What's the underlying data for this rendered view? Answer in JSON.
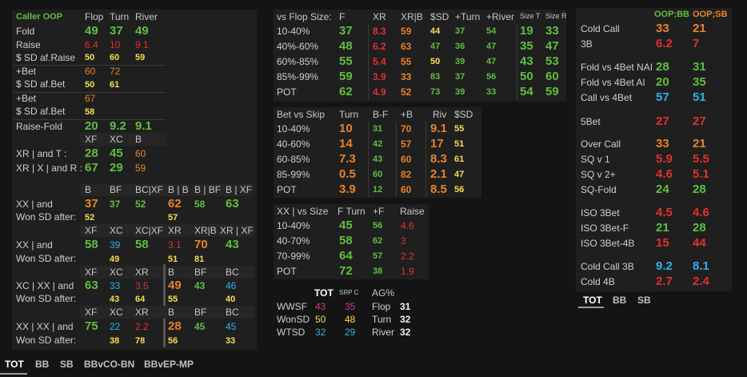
{
  "left": {
    "title": "Caller OOP",
    "cols": [
      "Flop",
      "Turn",
      "River"
    ],
    "rows1": [
      {
        "label": "Fold",
        "v": [
          "49",
          "37",
          "49"
        ]
      },
      {
        "label": "Raise",
        "v": [
          "6.4",
          "10",
          "9.1"
        ]
      },
      {
        "label": "$ SD af.Raise",
        "v": [
          "50",
          "60",
          "59"
        ]
      }
    ],
    "bet1": {
      "label": "+Bet",
      "v": [
        "60",
        "72"
      ]
    },
    "sd1": {
      "label": "$ SD af.Bet",
      "v": [
        "50",
        "61"
      ]
    },
    "bet2": {
      "label": "+Bet",
      "v": [
        "67"
      ]
    },
    "sd2": {
      "label": "$ SD af.Bet",
      "v": [
        "58"
      ]
    },
    "rf": {
      "label": "Raise-Fold",
      "v": [
        "20",
        "9.2",
        "9.1"
      ]
    },
    "xcols": [
      "XF",
      "XC",
      "B"
    ],
    "xr1": {
      "label": "XR | and T :",
      "v": [
        "28",
        "45",
        "60"
      ]
    },
    "xr2": {
      "label": "XR | X | and R :",
      "v": [
        "67",
        "29",
        "59"
      ]
    },
    "grid": {
      "h1": [
        "B",
        "BF",
        "BC|XF",
        "B | B",
        "B | BF",
        "B | XF"
      ],
      "g1": {
        "label": "XX | and",
        "won": "Won SD after:",
        "v": [
          "37",
          "37",
          "52",
          "62",
          "58",
          "63"
        ],
        "w": [
          "52",
          "",
          "",
          "57",
          "",
          ""
        ]
      },
      "h2": [
        "XF",
        "XC",
        "XC|XF",
        "XR",
        "XR|B",
        "XR | XF"
      ],
      "g2": {
        "label": "XX | and",
        "won": "Won SD after:",
        "v": [
          "58",
          "39",
          "58",
          "3.1",
          "70",
          "43"
        ],
        "w": [
          "",
          "49",
          "",
          "51",
          "81",
          ""
        ]
      },
      "h3": [
        "XF",
        "XC",
        "XR",
        "B",
        "BF",
        "BC"
      ],
      "g3": {
        "label": "XC | XX | and",
        "won": "Won SD after:",
        "v": [
          "63",
          "33",
          "3.5",
          "49",
          "43",
          "46"
        ],
        "w": [
          "",
          "43",
          "64",
          "55",
          "",
          "40"
        ]
      },
      "h4": [
        "XF",
        "XC",
        "XR",
        "B",
        "BF",
        "BC"
      ],
      "g4": {
        "label": "XX | XX | and",
        "won": "Won SD after:",
        "v": [
          "75",
          "22",
          "2.2",
          "28",
          "45",
          "45"
        ],
        "w": [
          "",
          "38",
          "78",
          "56",
          "",
          "33"
        ]
      }
    }
  },
  "mid": {
    "t1": {
      "cols": [
        "vs Flop Size:",
        "F",
        "XR",
        "XR|B",
        "$SD",
        "+Turn",
        "+River",
        "Size T",
        "Size R"
      ],
      "rows": [
        {
          "l": "10-40%",
          "v": [
            "37",
            "8.3",
            "59",
            "44",
            "37",
            "54",
            "19",
            "33"
          ]
        },
        {
          "l": "40%-60%",
          "v": [
            "48",
            "6.2",
            "63",
            "47",
            "36",
            "47",
            "35",
            "47"
          ]
        },
        {
          "l": "60%-85%",
          "v": [
            "55",
            "5.4",
            "55",
            "50",
            "39",
            "47",
            "43",
            "53"
          ]
        },
        {
          "l": "85%-99%",
          "v": [
            "59",
            "3.9",
            "33",
            "83",
            "37",
            "56",
            "50",
            "60"
          ]
        },
        {
          "l": "POT",
          "v": [
            "62",
            "4.9",
            "52",
            "73",
            "39",
            "33",
            "54",
            "59"
          ]
        }
      ]
    },
    "t2": {
      "cols": [
        "Bet vs Skip",
        "Turn",
        "B-F",
        "+B",
        "Riv",
        "$SD"
      ],
      "rows": [
        {
          "l": "10-40%",
          "v": [
            "10",
            "31",
            "70",
            "9.1",
            "55"
          ]
        },
        {
          "l": "40-60%",
          "v": [
            "14",
            "42",
            "57",
            "17",
            "51"
          ]
        },
        {
          "l": "60-85%",
          "v": [
            "7.3",
            "43",
            "60",
            "8.3",
            "61"
          ]
        },
        {
          "l": "85-99%",
          "v": [
            "0.5",
            "60",
            "82",
            "2.1",
            "47"
          ]
        },
        {
          "l": "POT",
          "v": [
            "3.9",
            "12",
            "60",
            "8.5",
            "56"
          ]
        }
      ]
    },
    "t3": {
      "cols": [
        "XX | vs Size",
        "F Turn",
        "+F",
        "Raise"
      ],
      "rows": [
        {
          "l": "10-40%",
          "v": [
            "45",
            "56",
            "4.6"
          ]
        },
        {
          "l": "40-70%",
          "v": [
            "58",
            "62",
            "3"
          ]
        },
        {
          "l": "70-99%",
          "v": [
            "64",
            "57",
            "2.2"
          ]
        },
        {
          "l": "POT",
          "v": [
            "72",
            "38",
            "1.9"
          ]
        }
      ]
    },
    "t4": {
      "cols": [
        "TOT",
        "SRP C",
        "AG%"
      ],
      "rows": [
        {
          "l": "WWSF",
          "v": [
            "43",
            "35"
          ],
          "ag": "Flop",
          "agv": "31"
        },
        {
          "l": "WonSD",
          "v": [
            "50",
            "48"
          ],
          "ag": "Turn",
          "agv": "32"
        },
        {
          "l": "WTSD",
          "v": [
            "32",
            "29"
          ],
          "ag": "River",
          "agv": "32"
        }
      ]
    }
  },
  "right": {
    "cols": [
      "OOP;BB",
      "OOP;SB"
    ],
    "rows": [
      {
        "l": "Cold Call",
        "v": [
          "33",
          "21"
        ]
      },
      {
        "l": "3B",
        "v": [
          "6.2",
          "7"
        ]
      },
      {
        "l": "Fold vs 4Bet NAI",
        "v": [
          "28",
          "31"
        ]
      },
      {
        "l": "Fold vs 4Bet AI",
        "v": [
          "20",
          "35"
        ]
      },
      {
        "l": "Call vs 4Bet",
        "v": [
          "57",
          "51"
        ]
      },
      {
        "l": "5Bet",
        "v": [
          "27",
          "27"
        ]
      },
      {
        "l": "Over Call",
        "v": [
          "33",
          "21"
        ]
      },
      {
        "l": "SQ v 1",
        "v": [
          "5.9",
          "5.5"
        ]
      },
      {
        "l": "SQ v 2+",
        "v": [
          "4.6",
          "5.1"
        ]
      },
      {
        "l": "SQ-Fold",
        "v": [
          "24",
          "28"
        ]
      },
      {
        "l": "ISO 3Bet",
        "v": [
          "4.5",
          "4.6"
        ]
      },
      {
        "l": "ISO 3Bet-F",
        "v": [
          "21",
          "28"
        ]
      },
      {
        "l": "ISO 3Bet-4B",
        "v": [
          "15",
          "44"
        ]
      },
      {
        "l": "Cold Call 3B",
        "v": [
          "9.2",
          "8.1"
        ]
      },
      {
        "l": "Cold 4B",
        "v": [
          "2.7",
          "2.4"
        ]
      }
    ],
    "tabs": [
      "TOT",
      "BB",
      "SB"
    ]
  },
  "bottom_tabs": [
    "TOT",
    "BB",
    "SB",
    "BBvCO-BN",
    "BBvEP-MP"
  ],
  "colors": {
    "green": "#5fbf3f",
    "red": "#e03030",
    "orange": "#e8822a",
    "yellow": "#f0e050",
    "blue": "#2fb0e8",
    "magenta": "#d0358a"
  }
}
